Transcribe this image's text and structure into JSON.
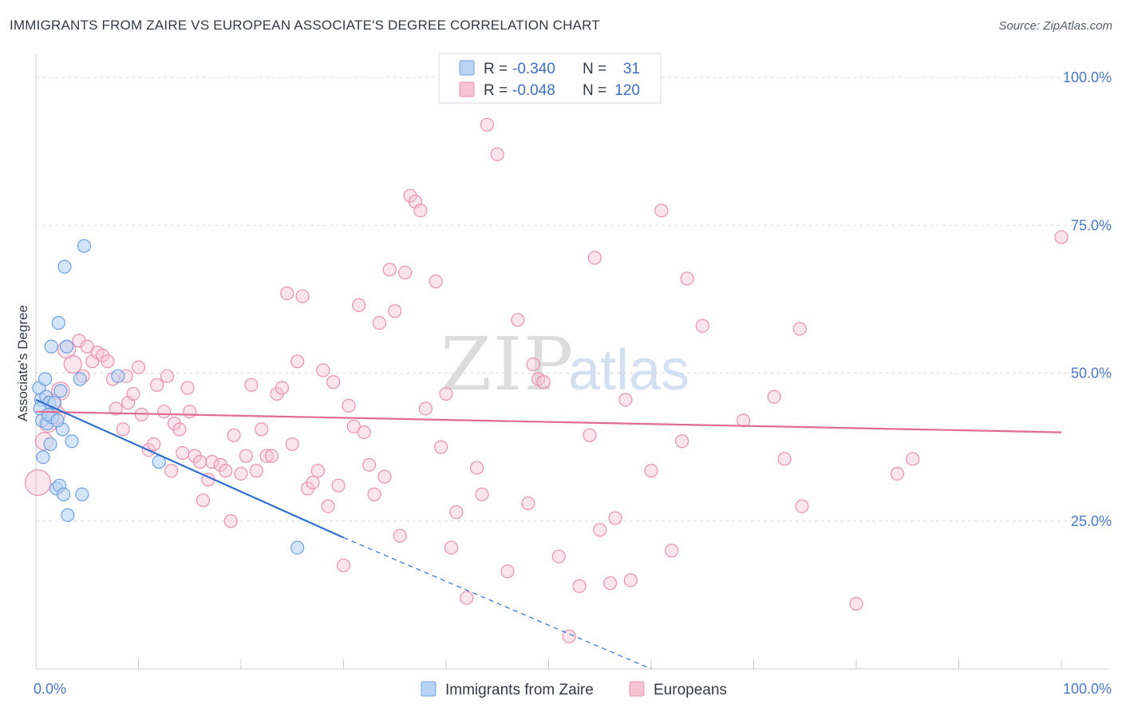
{
  "header": {
    "title": "IMMIGRANTS FROM ZAIRE VS EUROPEAN ASSOCIATE'S DEGREE CORRELATION CHART",
    "source": "Source: ZipAtlas.com"
  },
  "watermark": {
    "part1": "ZIP",
    "part2": "atlas"
  },
  "legend": {
    "rows": [
      {
        "r_label": "R = ",
        "r_value": "-0.340",
        "n_label": "N = ",
        "n_value": "31"
      },
      {
        "r_label": "R = ",
        "r_value": "-0.048",
        "n_label": "N = ",
        "n_value": "120"
      }
    ]
  },
  "colors": {
    "zaire_fill": "#b9d3f5",
    "zaire_stroke": "#6f9fe0",
    "zaire_line": "#2f6fd0",
    "euro_fill": "#f7c3d3",
    "euro_stroke": "#e991b0",
    "euro_line": "#e06a93",
    "grid": "#d8dce2",
    "axis_label": "#4a78c2"
  },
  "chart_data": {
    "type": "scatter",
    "title": "IMMIGRANTS FROM ZAIRE VS EUROPEAN ASSOCIATE'S DEGREE CORRELATION CHART",
    "xlabel": "",
    "ylabel": "Associate's Degree",
    "xlim": [
      0,
      100
    ],
    "ylim": [
      0,
      105
    ],
    "x_tick_labels": [
      "0.0%",
      "100.0%"
    ],
    "y_ticks": [
      25,
      50,
      75,
      100
    ],
    "y_tick_labels": [
      "25.0%",
      "50.0%",
      "75.0%",
      "100.0%"
    ],
    "grid": "horizontal dashed",
    "legend_position": "top-center",
    "series": [
      {
        "name": "Immigrants from Zaire",
        "R": -0.34,
        "N": 31,
        "points": [
          [
            0.3,
            47.5
          ],
          [
            0.5,
            45.5
          ],
          [
            0.6,
            42
          ],
          [
            0.7,
            35.8
          ],
          [
            0.9,
            49
          ],
          [
            1.0,
            46
          ],
          [
            1.1,
            41.5
          ],
          [
            1.3,
            45
          ],
          [
            1.4,
            38
          ],
          [
            1.5,
            54.5
          ],
          [
            1.6,
            42.5
          ],
          [
            1.8,
            45
          ],
          [
            2.0,
            30.5
          ],
          [
            2.2,
            58.5
          ],
          [
            2.3,
            31
          ],
          [
            2.4,
            47
          ],
          [
            2.6,
            40.5
          ],
          [
            2.7,
            29.5
          ],
          [
            2.8,
            68
          ],
          [
            3.0,
            54.5
          ],
          [
            3.1,
            26
          ],
          [
            3.5,
            38.5
          ],
          [
            4.3,
            49
          ],
          [
            4.5,
            29.5
          ],
          [
            4.7,
            71.5
          ],
          [
            8.0,
            49.5
          ],
          [
            12.0,
            35
          ],
          [
            25.5,
            20.5
          ],
          [
            0.4,
            44
          ],
          [
            1.2,
            43
          ],
          [
            2.1,
            42
          ]
        ],
        "trend": {
          "x0": 0,
          "y0": 45.5,
          "x1": 30,
          "y1": 22.2,
          "dashed_to_x": 60,
          "dashed_to_y": 0
        }
      },
      {
        "name": "Europeans",
        "R": -0.048,
        "N": 120,
        "points": [
          [
            0.2,
            31.5
          ],
          [
            0.8,
            38.5
          ],
          [
            1.2,
            41.5
          ],
          [
            1.6,
            45
          ],
          [
            2.0,
            43
          ],
          [
            2.4,
            47
          ],
          [
            3.0,
            54
          ],
          [
            3.6,
            51.5
          ],
          [
            4.2,
            55.5
          ],
          [
            4.6,
            49.5
          ],
          [
            5.0,
            54.5
          ],
          [
            5.5,
            52
          ],
          [
            6.0,
            53.5
          ],
          [
            6.5,
            53
          ],
          [
            7.0,
            52
          ],
          [
            7.5,
            49
          ],
          [
            7.8,
            44
          ],
          [
            8.5,
            40.5
          ],
          [
            8.8,
            49.5
          ],
          [
            9.0,
            45
          ],
          [
            9.5,
            46.5
          ],
          [
            10.0,
            51
          ],
          [
            10.3,
            43
          ],
          [
            11.0,
            37
          ],
          [
            11.5,
            38
          ],
          [
            11.8,
            48
          ],
          [
            12.5,
            43.5
          ],
          [
            12.8,
            49.5
          ],
          [
            13.2,
            33.5
          ],
          [
            13.5,
            41.5
          ],
          [
            14.0,
            40.5
          ],
          [
            14.3,
            36.5
          ],
          [
            14.8,
            47.5
          ],
          [
            15.0,
            43.5
          ],
          [
            15.5,
            36
          ],
          [
            16.0,
            35
          ],
          [
            16.3,
            28.5
          ],
          [
            16.8,
            32
          ],
          [
            17.2,
            35
          ],
          [
            18.0,
            34.5
          ],
          [
            18.5,
            33.5
          ],
          [
            19.0,
            25
          ],
          [
            19.3,
            39.5
          ],
          [
            20.0,
            33
          ],
          [
            20.5,
            36
          ],
          [
            21.0,
            48
          ],
          [
            21.5,
            33.5
          ],
          [
            22.0,
            40.5
          ],
          [
            22.5,
            36
          ],
          [
            23.0,
            36
          ],
          [
            23.5,
            46.5
          ],
          [
            24.0,
            47.5
          ],
          [
            24.5,
            63.5
          ],
          [
            25.0,
            38
          ],
          [
            25.5,
            52
          ],
          [
            26.0,
            63
          ],
          [
            26.5,
            30.5
          ],
          [
            27.0,
            31.5
          ],
          [
            27.5,
            33.5
          ],
          [
            28.0,
            50.5
          ],
          [
            28.5,
            27.5
          ],
          [
            29.0,
            48.5
          ],
          [
            29.5,
            31
          ],
          [
            30.0,
            17.5
          ],
          [
            30.5,
            44.5
          ],
          [
            31.0,
            41
          ],
          [
            31.5,
            61.5
          ],
          [
            32.0,
            40
          ],
          [
            32.5,
            34.5
          ],
          [
            33.0,
            29.5
          ],
          [
            33.5,
            58.5
          ],
          [
            34.0,
            32.5
          ],
          [
            34.5,
            67.5
          ],
          [
            35.0,
            60.5
          ],
          [
            35.5,
            22.5
          ],
          [
            36.0,
            67
          ],
          [
            36.5,
            80
          ],
          [
            37.0,
            79
          ],
          [
            37.5,
            77.5
          ],
          [
            38.0,
            44
          ],
          [
            39.0,
            65.5
          ],
          [
            39.5,
            37.5
          ],
          [
            40.0,
            46.5
          ],
          [
            40.5,
            20.5
          ],
          [
            41.0,
            26.5
          ],
          [
            42.0,
            12
          ],
          [
            43.0,
            34
          ],
          [
            43.5,
            29.5
          ],
          [
            44.0,
            92
          ],
          [
            45.0,
            87
          ],
          [
            46.0,
            16.5
          ],
          [
            47.0,
            59
          ],
          [
            48.0,
            28
          ],
          [
            48.5,
            51.5
          ],
          [
            49.0,
            49
          ],
          [
            49.5,
            48.5
          ],
          [
            51.0,
            19
          ],
          [
            52.0,
            5.5
          ],
          [
            53.0,
            14
          ],
          [
            54.0,
            39.5
          ],
          [
            54.5,
            69.5
          ],
          [
            55.0,
            23.5
          ],
          [
            56.0,
            14.5
          ],
          [
            56.5,
            25.5
          ],
          [
            57.5,
            45.5
          ],
          [
            58.0,
            15
          ],
          [
            60.0,
            33.5
          ],
          [
            61.0,
            77.5
          ],
          [
            62.0,
            20
          ],
          [
            63.0,
            38.5
          ],
          [
            63.5,
            66
          ],
          [
            65.0,
            58
          ],
          [
            69.0,
            42
          ],
          [
            72.0,
            46
          ],
          [
            73.0,
            35.5
          ],
          [
            74.5,
            57.5
          ],
          [
            74.7,
            27.5
          ],
          [
            80.0,
            11
          ],
          [
            84.0,
            33
          ],
          [
            85.5,
            35.5
          ],
          [
            100.0,
            73
          ]
        ],
        "trend": {
          "x0": 0,
          "y0": 43.5,
          "x1": 100,
          "y1": 40
        }
      }
    ]
  }
}
